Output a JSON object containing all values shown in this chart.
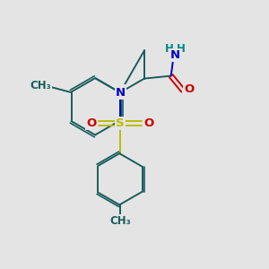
{
  "bg_color": "#e4e4e4",
  "bond_color": "#1a5c5c",
  "O_color": "#cc0000",
  "N_color": "#0000cc",
  "S_color": "#bbbb00",
  "H_color": "#008888",
  "lw": 1.4,
  "fs": 9.5,
  "fs_sm": 8.5,
  "xlim": [
    0,
    10
  ],
  "ylim": [
    0,
    10
  ]
}
